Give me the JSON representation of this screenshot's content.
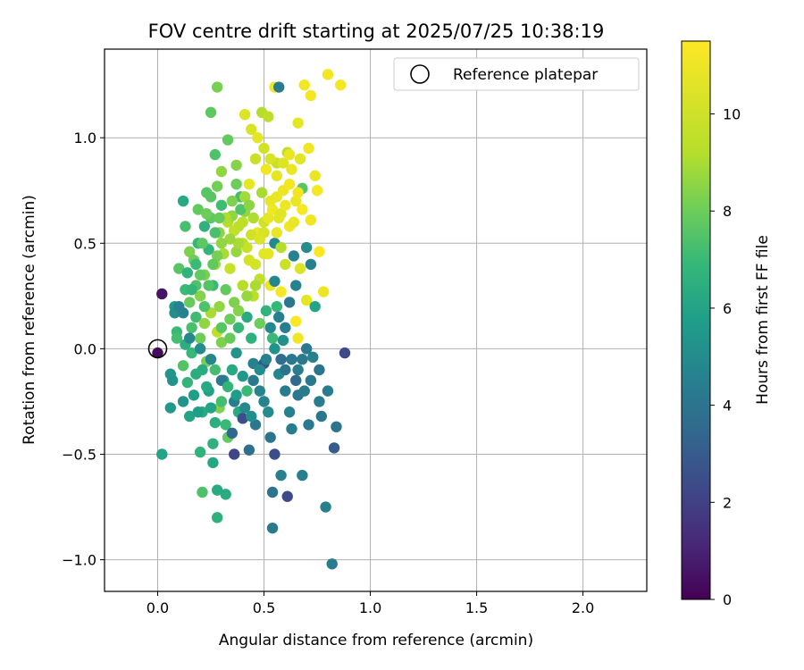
{
  "chart_data": {
    "type": "scatter",
    "title": "FOV centre drift starting at 2025/07/25 10:38:19",
    "xlabel": "Angular distance from reference (arcmin)",
    "ylabel": "Rotation from reference (arcmin)",
    "xlim": [
      -0.25,
      2.3
    ],
    "ylim": [
      -1.15,
      1.42
    ],
    "x_ticks": [
      0.0,
      0.5,
      1.0,
      1.5,
      2.0
    ],
    "x_tick_labels": [
      "0.0",
      "0.5",
      "1.0",
      "1.5",
      "2.0"
    ],
    "y_ticks": [
      -1.0,
      -0.5,
      0.0,
      0.5,
      1.0
    ],
    "y_tick_labels": [
      "−1.0",
      "−0.5",
      "0.0",
      "0.5",
      "1.0"
    ],
    "grid": true,
    "legend": {
      "placement": "top-right",
      "entries": [
        "Reference platepar"
      ]
    },
    "reference_point": {
      "x": 0.0,
      "y": 0.0
    },
    "colorbar": {
      "label": "Hours from first FF file",
      "range": [
        0,
        11.5
      ],
      "ticks": [
        0,
        2,
        4,
        6,
        8,
        10
      ],
      "tick_labels": [
        "0",
        "2",
        "4",
        "6",
        "8",
        "10"
      ],
      "colormap": "viridis"
    },
    "note_points": "Points are [x (arcmin), y (arcmin), hours].",
    "points": [
      [
        0.0,
        -0.02,
        0.3
      ],
      [
        0.02,
        0.26,
        0.5
      ],
      [
        0.02,
        -0.5,
        6.0
      ],
      [
        0.06,
        -0.28,
        5.5
      ],
      [
        0.06,
        -0.12,
        5.4
      ],
      [
        0.07,
        -0.15,
        5.3
      ],
      [
        0.08,
        0.2,
        5.6
      ],
      [
        0.08,
        0.17,
        5.1
      ],
      [
        0.09,
        0.08,
        7.0
      ],
      [
        0.09,
        0.05,
        7.2
      ],
      [
        0.1,
        0.38,
        7.6
      ],
      [
        0.12,
        0.7,
        6.2
      ],
      [
        0.12,
        -0.25,
        5.4
      ],
      [
        0.12,
        -0.08,
        7.5
      ],
      [
        0.13,
        0.58,
        7.3
      ],
      [
        0.13,
        0.28,
        7.0
      ],
      [
        0.13,
        0.02,
        6.5
      ],
      [
        0.14,
        -0.16,
        6.8
      ],
      [
        0.14,
        0.36,
        6.7
      ],
      [
        0.15,
        0.46,
        8.3
      ],
      [
        0.15,
        -0.32,
        6.0
      ],
      [
        0.15,
        0.22,
        7.9
      ],
      [
        0.16,
        0.1,
        7.3
      ],
      [
        0.16,
        -0.02,
        6.9
      ],
      [
        0.17,
        0.42,
        8.0
      ],
      [
        0.17,
        -0.22,
        5.8
      ],
      [
        0.18,
        0.15,
        7.1
      ],
      [
        0.18,
        0.3,
        7.4
      ],
      [
        0.18,
        -0.12,
        6.4
      ],
      [
        0.19,
        0.66,
        7.8
      ],
      [
        0.19,
        0.5,
        6.9
      ],
      [
        0.2,
        -0.49,
        6.7
      ],
      [
        0.2,
        0.25,
        8.4
      ],
      [
        0.2,
        0.05,
        8.0
      ],
      [
        0.21,
        -0.3,
        6.3
      ],
      [
        0.21,
        -0.68,
        7.4
      ],
      [
        0.22,
        0.12,
        8.6
      ],
      [
        0.22,
        0.58,
        6.6
      ],
      [
        0.22,
        0.35,
        8.2
      ],
      [
        0.23,
        -0.06,
        8.1
      ],
      [
        0.23,
        0.74,
        7.6
      ],
      [
        0.24,
        0.47,
        6.8
      ],
      [
        0.24,
        -0.2,
        5.9
      ],
      [
        0.25,
        0.17,
        9.0
      ],
      [
        0.25,
        0.62,
        7.7
      ],
      [
        0.25,
        1.12,
        7.7
      ],
      [
        0.26,
        -0.45,
        6.6
      ],
      [
        0.26,
        0.3,
        7.0
      ],
      [
        0.26,
        -0.54,
        6.1
      ],
      [
        0.27,
        0.92,
        7.4
      ],
      [
        0.27,
        0.4,
        8.9
      ],
      [
        0.27,
        -0.1,
        7.2
      ],
      [
        0.28,
        0.77,
        8.1
      ],
      [
        0.28,
        0.08,
        9.4
      ],
      [
        0.28,
        -0.67,
        6.3
      ],
      [
        0.28,
        1.24,
        8.2
      ],
      [
        0.28,
        -0.8,
        6.6
      ],
      [
        0.29,
        0.55,
        8.5
      ],
      [
        0.29,
        0.2,
        8.6
      ],
      [
        0.29,
        -0.28,
        8.3
      ],
      [
        0.3,
        0.84,
        8.6
      ],
      [
        0.3,
        0.68,
        7.1
      ],
      [
        0.3,
        0.03,
        8.3
      ],
      [
        0.31,
        -0.15,
        5.4
      ],
      [
        0.31,
        0.45,
        9.0
      ],
      [
        0.32,
        0.28,
        7.8
      ],
      [
        0.32,
        -0.36,
        7.0
      ],
      [
        0.32,
        -0.69,
        6.4
      ],
      [
        0.33,
        0.99,
        7.8
      ],
      [
        0.33,
        0.6,
        9.2
      ],
      [
        0.33,
        -0.42,
        7.8
      ],
      [
        0.34,
        0.38,
        9.6
      ],
      [
        0.34,
        0.14,
        8.0
      ],
      [
        0.35,
        -0.1,
        6.2
      ],
      [
        0.35,
        0.63,
        8.6
      ],
      [
        0.36,
        -0.5,
        2.2
      ],
      [
        0.36,
        0.22,
        8.3
      ],
      [
        0.36,
        -0.25,
        4.4
      ],
      [
        0.37,
        0.87,
        8.4
      ],
      [
        0.37,
        -0.02,
        5.4
      ],
      [
        0.37,
        0.46,
        8.7
      ],
      [
        0.38,
        0.58,
        9.3
      ],
      [
        0.38,
        -0.3,
        6.2
      ],
      [
        0.38,
        0.1,
        6.9
      ],
      [
        0.39,
        0.72,
        7.2
      ],
      [
        0.4,
        0.3,
        9.2
      ],
      [
        0.4,
        -0.13,
        5.5
      ],
      [
        0.4,
        0.5,
        9.4
      ],
      [
        0.41,
        0.65,
        8.6
      ],
      [
        0.41,
        1.11,
        10.1
      ],
      [
        0.42,
        0.15,
        6.3
      ],
      [
        0.42,
        -0.2,
        7.0
      ],
      [
        0.43,
        0.78,
        10.4
      ],
      [
        0.43,
        -0.48,
        3.8
      ],
      [
        0.43,
        0.42,
        9.9
      ],
      [
        0.44,
        1.04,
        10.0
      ],
      [
        0.44,
        0.05,
        6.6
      ],
      [
        0.45,
        0.62,
        9.1
      ],
      [
        0.45,
        -0.07,
        4.5
      ],
      [
        0.45,
        0.25,
        9.3
      ],
      [
        0.46,
        0.9,
        9.7
      ],
      [
        0.46,
        -0.36,
        4.1
      ],
      [
        0.47,
        0.55,
        10.5
      ],
      [
        0.47,
        1.0,
        10.3
      ],
      [
        0.48,
        0.33,
        9.5
      ],
      [
        0.48,
        0.12,
        8.0
      ],
      [
        0.48,
        -0.2,
        4.7
      ],
      [
        0.49,
        1.12,
        9.2
      ],
      [
        0.49,
        0.74,
        9.0
      ],
      [
        0.5,
        0.45,
        10.2
      ],
      [
        0.5,
        -0.07,
        2.8
      ],
      [
        0.5,
        0.6,
        9.8
      ],
      [
        0.51,
        0.18,
        6.7
      ],
      [
        0.51,
        0.85,
        10.8
      ],
      [
        0.52,
        -0.3,
        5.0
      ],
      [
        0.52,
        1.1,
        9.4
      ],
      [
        0.53,
        0.3,
        10.6
      ],
      [
        0.53,
        -0.42,
        4.0
      ],
      [
        0.53,
        0.7,
        10.4
      ],
      [
        0.54,
        0.05,
        7.0
      ],
      [
        0.54,
        -0.68,
        4.0
      ],
      [
        0.54,
        -0.85,
        4.2
      ],
      [
        0.55,
        0.5,
        4.9
      ],
      [
        0.55,
        1.24,
        10.9
      ],
      [
        0.55,
        -0.5,
        2.5
      ],
      [
        0.56,
        0.2,
        6.9
      ],
      [
        0.56,
        0.88,
        9.6
      ],
      [
        0.57,
        -0.12,
        4.8
      ],
      [
        0.57,
        0.62,
        10.2
      ],
      [
        0.57,
        1.24,
        4.3
      ],
      [
        0.58,
        0.27,
        11.1
      ],
      [
        0.58,
        -0.6,
        4.5
      ],
      [
        0.59,
        0.75,
        10.7
      ],
      [
        0.59,
        0.04,
        5.2
      ],
      [
        0.6,
        0.4,
        9.7
      ],
      [
        0.6,
        -0.2,
        4.3
      ],
      [
        0.61,
        0.93,
        9.4
      ],
      [
        0.61,
        -0.7,
        2.3
      ],
      [
        0.62,
        0.58,
        10.9
      ],
      [
        0.62,
        0.22,
        4.1
      ],
      [
        0.63,
        -0.38,
        4.3
      ],
      [
        0.63,
        0.85,
        10.6
      ],
      [
        0.64,
        0.44,
        4.6
      ],
      [
        0.65,
        0.13,
        11.2
      ],
      [
        0.65,
        0.7,
        10.5
      ],
      [
        0.66,
        -0.22,
        4.1
      ],
      [
        0.66,
        1.07,
        10.3
      ],
      [
        0.66,
        0.05,
        10.9
      ],
      [
        0.67,
        0.9,
        10.2
      ],
      [
        0.67,
        0.38,
        10.1
      ],
      [
        0.68,
        -0.6,
        4.5
      ],
      [
        0.68,
        0.76,
        7.6
      ],
      [
        0.68,
        -0.05,
        4.2
      ],
      [
        0.69,
        1.25,
        11.0
      ],
      [
        0.7,
        0.48,
        5.0
      ],
      [
        0.7,
        0.23,
        10.3
      ],
      [
        0.71,
        -0.36,
        4.2
      ],
      [
        0.71,
        0.95,
        10.9
      ],
      [
        0.72,
        0.61,
        10.8
      ],
      [
        0.72,
        1.2,
        11.0
      ],
      [
        0.73,
        -0.04,
        4.5
      ],
      [
        0.74,
        0.82,
        10.6
      ],
      [
        0.74,
        0.2,
        6.0
      ],
      [
        0.75,
        0.75,
        11.1
      ],
      [
        0.76,
        -0.25,
        4.3
      ],
      [
        0.76,
        0.46,
        11.3
      ],
      [
        0.77,
        -0.32,
        4.1
      ],
      [
        0.78,
        0.27,
        10.7
      ],
      [
        0.79,
        -0.75,
        4.5
      ],
      [
        0.8,
        -0.2,
        4.3
      ],
      [
        0.8,
        1.3,
        11.0
      ],
      [
        0.82,
        -1.02,
        4.3
      ],
      [
        0.83,
        -0.47,
        3.0
      ],
      [
        0.84,
        -0.37,
        4.0
      ],
      [
        0.86,
        1.25,
        11.0
      ],
      [
        0.88,
        -0.02,
        2.3
      ],
      [
        0.76,
        -0.1,
        4.0
      ],
      [
        0.65,
        -0.15,
        3.6
      ],
      [
        0.62,
        -0.3,
        4.5
      ],
      [
        0.58,
        -0.05,
        3.7
      ],
      [
        0.5,
        -0.25,
        4.6
      ],
      [
        0.45,
        -0.15,
        4.2
      ],
      [
        0.4,
        -0.33,
        2.5
      ],
      [
        0.35,
        -0.4,
        3.5
      ],
      [
        0.3,
        -0.15,
        4.2
      ],
      [
        0.25,
        -0.05,
        4.8
      ],
      [
        0.2,
        0.0,
        5.0
      ],
      [
        0.15,
        0.05,
        4.8
      ],
      [
        0.12,
        0.17,
        4.5
      ],
      [
        0.1,
        0.2,
        4.6
      ],
      [
        0.55,
        0.32,
        4.8
      ],
      [
        0.6,
        0.1,
        4.4
      ],
      [
        0.65,
        0.3,
        4.6
      ],
      [
        0.7,
        0.0,
        4.2
      ],
      [
        0.72,
        0.4,
        4.5
      ],
      [
        0.5,
        0.55,
        10.0
      ],
      [
        0.52,
        0.62,
        10.4
      ],
      [
        0.54,
        0.66,
        10.8
      ],
      [
        0.56,
        0.72,
        10.6
      ],
      [
        0.58,
        0.64,
        10.2
      ],
      [
        0.6,
        0.68,
        10.7
      ],
      [
        0.62,
        0.78,
        11.0
      ],
      [
        0.64,
        0.6,
        10.5
      ],
      [
        0.66,
        0.74,
        10.9
      ],
      [
        0.68,
        0.66,
        11.2
      ],
      [
        0.44,
        0.54,
        9.8
      ],
      [
        0.42,
        0.48,
        9.6
      ],
      [
        0.4,
        0.6,
        9.4
      ],
      [
        0.38,
        0.5,
        9.0
      ],
      [
        0.36,
        0.56,
        9.5
      ],
      [
        0.34,
        0.52,
        8.8
      ],
      [
        0.32,
        0.62,
        9.1
      ],
      [
        0.3,
        0.5,
        8.6
      ],
      [
        0.28,
        0.44,
        8.2
      ],
      [
        0.26,
        0.4,
        7.8
      ],
      [
        0.46,
        0.4,
        9.9
      ],
      [
        0.48,
        0.52,
        10.1
      ],
      [
        0.52,
        0.45,
        10.3
      ],
      [
        0.56,
        0.55,
        10.5
      ],
      [
        0.58,
        0.48,
        9.2
      ],
      [
        0.24,
        0.3,
        7.5
      ],
      [
        0.22,
        0.2,
        7.4
      ],
      [
        0.2,
        0.35,
        7.8
      ],
      [
        0.18,
        0.4,
        7.0
      ],
      [
        0.16,
        0.28,
        6.8
      ],
      [
        0.3,
        0.1,
        7.6
      ],
      [
        0.34,
        0.05,
        7.9
      ],
      [
        0.38,
        0.18,
        8.4
      ],
      [
        0.42,
        0.25,
        8.7
      ],
      [
        0.46,
        0.3,
        9.0
      ],
      [
        0.27,
        -0.35,
        6.5
      ],
      [
        0.25,
        -0.28,
        6.0
      ],
      [
        0.23,
        -0.18,
        6.2
      ],
      [
        0.21,
        -0.1,
        6.4
      ],
      [
        0.19,
        -0.3,
        5.8
      ],
      [
        0.3,
        -0.25,
        7.2
      ],
      [
        0.33,
        -0.18,
        6.8
      ],
      [
        0.37,
        -0.22,
        5.7
      ],
      [
        0.41,
        -0.28,
        4.9
      ],
      [
        0.44,
        -0.32,
        5.1
      ],
      [
        0.48,
        -0.1,
        5.0
      ],
      [
        0.51,
        -0.05,
        4.6
      ],
      [
        0.53,
        0.1,
        4.9
      ],
      [
        0.55,
        0.0,
        5.3
      ],
      [
        0.57,
        0.15,
        4.5
      ],
      [
        0.6,
        -0.1,
        4.0
      ],
      [
        0.63,
        -0.05,
        4.2
      ],
      [
        0.66,
        -0.1,
        4.4
      ],
      [
        0.69,
        -0.2,
        4.3
      ],
      [
        0.72,
        -0.15,
        4.1
      ],
      [
        0.35,
        0.7,
        8.3
      ],
      [
        0.37,
        0.78,
        8.0
      ],
      [
        0.39,
        0.66,
        7.5
      ],
      [
        0.41,
        0.72,
        8.9
      ],
      [
        0.43,
        0.68,
        8.5
      ],
      [
        0.29,
        0.62,
        7.9
      ],
      [
        0.27,
        0.55,
        7.3
      ],
      [
        0.25,
        0.72,
        7.6
      ],
      [
        0.23,
        0.64,
        8.0
      ],
      [
        0.21,
        0.5,
        7.7
      ],
      [
        0.5,
        0.95,
        9.8
      ],
      [
        0.53,
        0.9,
        10.0
      ],
      [
        0.56,
        0.82,
        10.3
      ],
      [
        0.59,
        0.88,
        10.1
      ],
      [
        0.62,
        0.92,
        10.6
      ]
    ]
  }
}
